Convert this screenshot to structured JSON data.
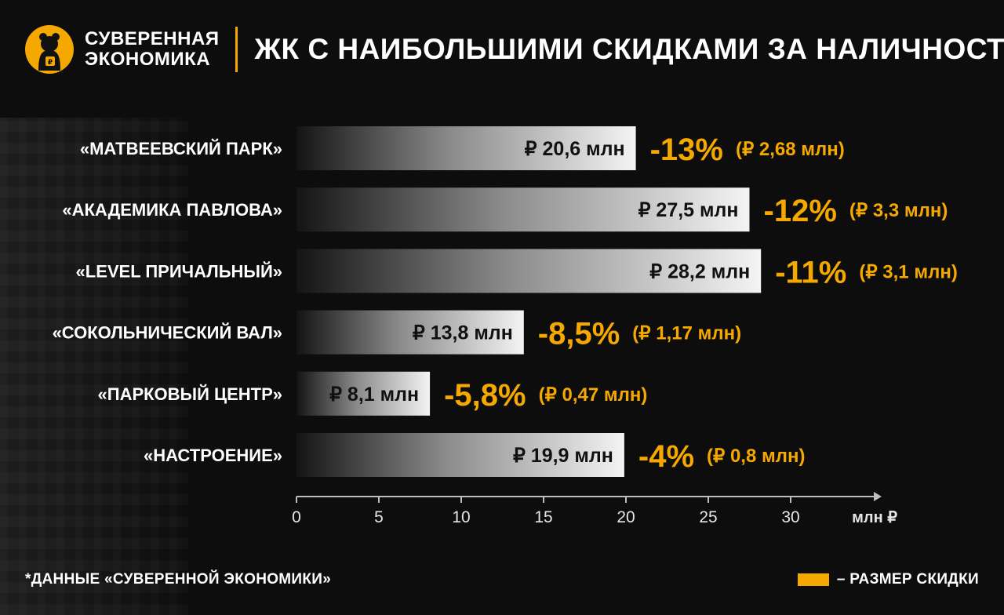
{
  "brand": {
    "line1": "СУВЕРЕННАЯ",
    "line2": "ЭКОНОМИКА"
  },
  "title": "ЖК С НАИБОЛЬШИМИ СКИДКАМИ ЗА НАЛИЧНОСТЬ",
  "footnote": "*ДАННЫЕ «СУВЕРЕННОЙ ЭКОНОМИКИ»",
  "legend": {
    "label": "– РАЗМЕР СКИДКИ"
  },
  "colors": {
    "accent": "#f5a800",
    "background": "#0d0d0d",
    "bar_light": "#f2f2f2"
  },
  "chart_data": {
    "type": "bar",
    "orientation": "horizontal",
    "categories": [
      "«МАТВЕЕВСКИЙ ПАРК»",
      "«АКАДЕМИКА ПАВЛОВА»",
      "«LEVEL ПРИЧАЛЬНЫЙ»",
      "«СОКОЛЬНИЧЕСКИЙ ВАЛ»",
      "«ПАРКОВЫЙ ЦЕНТР»",
      "«НАСТРОЕНИЕ»"
    ],
    "values": [
      20.6,
      27.5,
      28.2,
      13.8,
      8.1,
      19.9
    ],
    "value_labels": [
      "₽ 20,6 млн",
      "₽ 27,5 млн",
      "₽ 28,2 млн",
      "₽ 13,8 млн",
      "₽ 8,1 млн",
      "₽ 19,9 млн"
    ],
    "discount_pct_labels": [
      "-13%",
      "-12%",
      "-11%",
      "-8,5%",
      "-5,8%",
      "-4%"
    ],
    "discount_amount_labels": [
      "(₽ 2,68 млн)",
      "(₽ 3,3 млн)",
      "(₽ 3,1 млн)",
      "(₽ 1,17 млн)",
      "(₽ 0,47 млн)",
      "(₽ 0,8 млн)"
    ],
    "x_ticks": [
      0,
      5,
      10,
      15,
      20,
      25,
      30
    ],
    "xlabel": "млн ₽",
    "xlim": [
      0,
      35
    ],
    "grid": false,
    "legend_position": "bottom-right"
  }
}
